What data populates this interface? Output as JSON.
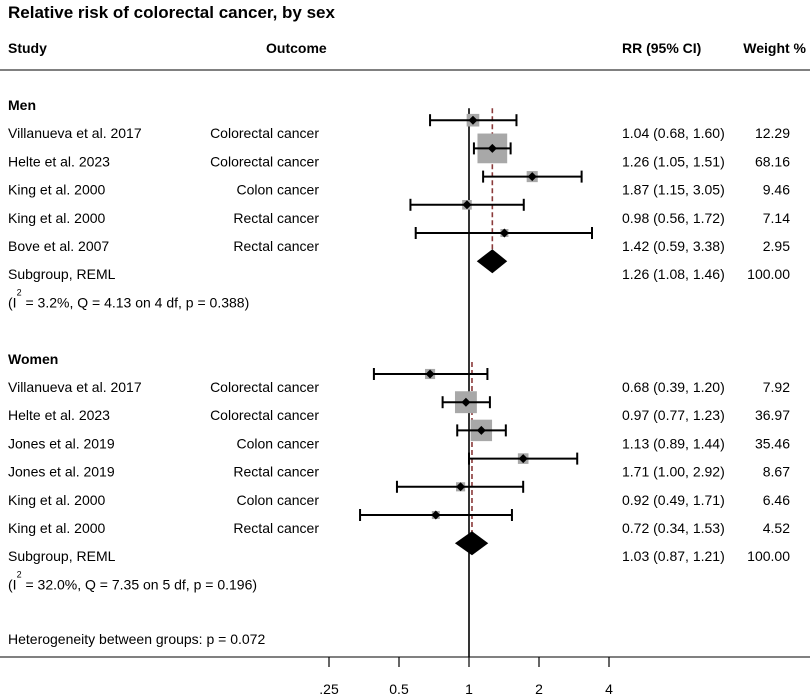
{
  "chart_data": {
    "type": "scatter",
    "title": "Relative risk of colorectal cancer, by sex",
    "headers": {
      "study": "Study",
      "outcome": "Outcome",
      "rr": "RR (95% CI)",
      "weight": "Weight %"
    },
    "xticks": [
      0.25,
      0.5,
      1,
      2,
      4
    ],
    "xtick_labels": [
      ".25",
      "0.5",
      "1",
      "2",
      "4"
    ],
    "xlim": [
      0.25,
      4
    ],
    "reference_value": 1,
    "groups": [
      {
        "name": "Men",
        "studies": [
          {
            "study": "Villanueva et al. 2017",
            "outcome": "Colorectal cancer",
            "rr": 1.04,
            "ci": [
              0.68,
              1.6
            ],
            "rr_ci_text": "1.04 (0.68, 1.60)",
            "weight": 12.29,
            "weight_text": "12.29"
          },
          {
            "study": "Helte et al. 2023",
            "outcome": "Colorectal cancer",
            "rr": 1.26,
            "ci": [
              1.05,
              1.51
            ],
            "rr_ci_text": "1.26 (1.05, 1.51)",
            "weight": 68.16,
            "weight_text": "68.16"
          },
          {
            "study": "King et al. 2000",
            "outcome": "Colon cancer",
            "rr": 1.87,
            "ci": [
              1.15,
              3.05
            ],
            "rr_ci_text": "1.87 (1.15, 3.05)",
            "weight": 9.46,
            "weight_text": "9.46"
          },
          {
            "study": "King et al. 2000",
            "outcome": "Rectal cancer",
            "rr": 0.98,
            "ci": [
              0.56,
              1.72
            ],
            "rr_ci_text": "0.98 (0.56, 1.72)",
            "weight": 7.14,
            "weight_text": "7.14"
          },
          {
            "study": "Bove et al. 2007",
            "outcome": "Rectal cancer",
            "rr": 1.42,
            "ci": [
              0.59,
              3.38
            ],
            "rr_ci_text": "1.42 (0.59, 3.38)",
            "weight": 2.95,
            "weight_text": "2.95"
          }
        ],
        "subgroup": {
          "label": "Subgroup, REML",
          "rr": 1.26,
          "ci": [
            1.08,
            1.46
          ],
          "rr_ci_text": "1.26 (1.08, 1.46)",
          "weight_text": "100.00"
        },
        "heterogeneity": {
          "prefix": "(I",
          "superscript": "2",
          "rest": " = 3.2%, Q = 4.13 on 4 df, p = 0.388)"
        }
      },
      {
        "name": "Women",
        "studies": [
          {
            "study": "Villanueva et al. 2017",
            "outcome": "Colorectal cancer",
            "rr": 0.68,
            "ci": [
              0.39,
              1.2
            ],
            "rr_ci_text": "0.68 (0.39, 1.20)",
            "weight": 7.92,
            "weight_text": "7.92"
          },
          {
            "study": "Helte et al. 2023",
            "outcome": "Colorectal cancer",
            "rr": 0.97,
            "ci": [
              0.77,
              1.23
            ],
            "rr_ci_text": "0.97 (0.77, 1.23)",
            "weight": 36.97,
            "weight_text": "36.97"
          },
          {
            "study": "Jones et al. 2019",
            "outcome": "Colon cancer",
            "rr": 1.13,
            "ci": [
              0.89,
              1.44
            ],
            "rr_ci_text": "1.13 (0.89, 1.44)",
            "weight": 35.46,
            "weight_text": "35.46"
          },
          {
            "study": "Jones et al. 2019",
            "outcome": "Rectal cancer",
            "rr": 1.71,
            "ci": [
              1.0,
              2.92
            ],
            "rr_ci_text": "1.71 (1.00, 2.92)",
            "weight": 8.67,
            "weight_text": "8.67"
          },
          {
            "study": "King et al. 2000",
            "outcome": "Colon cancer",
            "rr": 0.92,
            "ci": [
              0.49,
              1.71
            ],
            "rr_ci_text": "0.92 (0.49, 1.71)",
            "weight": 6.46,
            "weight_text": "6.46"
          },
          {
            "study": "King et al. 2000",
            "outcome": "Rectal cancer",
            "rr": 0.72,
            "ci": [
              0.34,
              1.53
            ],
            "rr_ci_text": "0.72 (0.34, 1.53)",
            "weight": 4.52,
            "weight_text": "4.52"
          }
        ],
        "subgroup": {
          "label": "Subgroup, REML",
          "rr": 1.03,
          "ci": [
            0.87,
            1.21
          ],
          "rr_ci_text": "1.03 (0.87, 1.21)",
          "weight_text": "100.00"
        },
        "heterogeneity": {
          "prefix": "(I",
          "superscript": "2",
          "rest": " = 32.0%, Q = 7.35 on 5 df, p = 0.196)"
        }
      }
    ],
    "between_groups": "Heterogeneity between groups: p = 0.072"
  },
  "colors": {
    "weight_square": "#a8a8a8",
    "point_marker": "#000000",
    "ci_line": "#000000",
    "pooled_line": "#8b3a3a",
    "pooled_diamond": "#000000",
    "reference_line": "#000000",
    "rule": "#000000"
  }
}
